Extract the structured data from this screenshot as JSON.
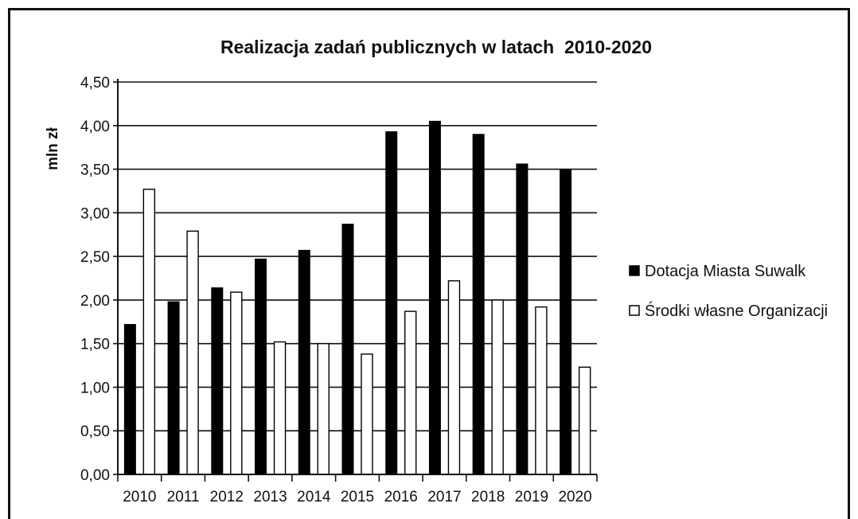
{
  "chart_data": {
    "type": "bar",
    "title": "Realizacja zadań publicznych w latach  2010-2020",
    "xlabel": "",
    "ylabel": "mln zł",
    "ylim": [
      0,
      4.5
    ],
    "yticks": [
      "0,00",
      "0,50",
      "1,00",
      "1,50",
      "2,00",
      "2,50",
      "3,00",
      "3,50",
      "4,00",
      "4,50"
    ],
    "categories": [
      "2010",
      "2011",
      "2012",
      "2013",
      "2014",
      "2015",
      "2016",
      "2017",
      "2018",
      "2019",
      "2020"
    ],
    "grid": true,
    "legend_position": "right",
    "series": [
      {
        "name": "Dotacja Miasta Suwalk",
        "color": "#000000",
        "values": [
          1.72,
          1.98,
          2.14,
          2.47,
          2.57,
          2.87,
          3.93,
          4.05,
          3.9,
          3.56,
          3.49
        ]
      },
      {
        "name": "Środki własne Organizacji",
        "color": "#ffffff",
        "values": [
          3.27,
          2.79,
          2.09,
          1.52,
          1.5,
          1.38,
          1.87,
          2.22,
          2.0,
          1.92,
          1.23
        ]
      }
    ]
  }
}
